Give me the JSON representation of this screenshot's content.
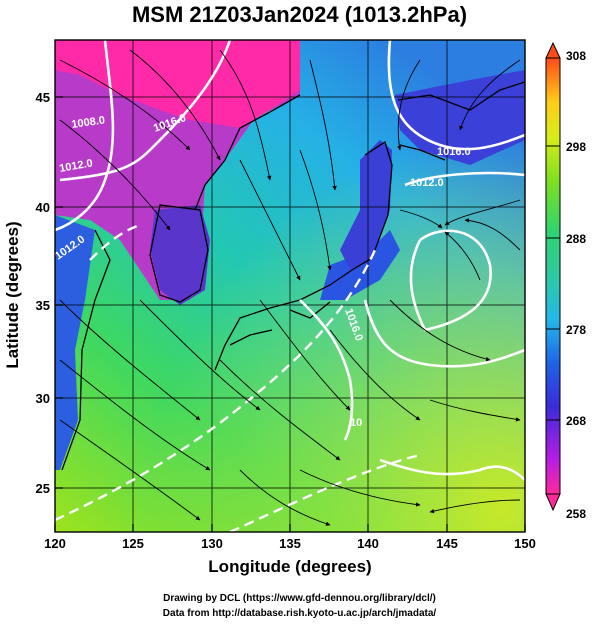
{
  "title": "MSM 21Z03Jan2024 (1013.2hPa)",
  "x_axis": {
    "label": "Longitude (degrees)",
    "ticks": [
      "120",
      "125",
      "130",
      "135",
      "140",
      "145",
      "150"
    ]
  },
  "y_axis": {
    "label": "Latitude  (degrees)",
    "ticks": [
      "25",
      "30",
      "35",
      "40",
      "45"
    ]
  },
  "colorbar": {
    "ticks": [
      "258",
      "268",
      "278",
      "288",
      "298",
      "308"
    ],
    "colors": [
      "#ff2a9a",
      "#a21de8",
      "#2637e0",
      "#25b8e8",
      "#2ed36f",
      "#55e026",
      "#d8ec1c",
      "#ffb81a",
      "#ff4a1a"
    ]
  },
  "contour_labels": [
    "1008.0",
    "1016.0",
    "1012.0",
    "1016.0",
    "1012.0",
    "1012.0",
    "1016.0",
    "10"
  ],
  "credits": [
    "Drawing by DCL (https://www.gfd-dennou.org/library/dcl/)",
    "Data from http://database.rish.kyoto-u.ac.jp/arch/jmadata/"
  ]
}
